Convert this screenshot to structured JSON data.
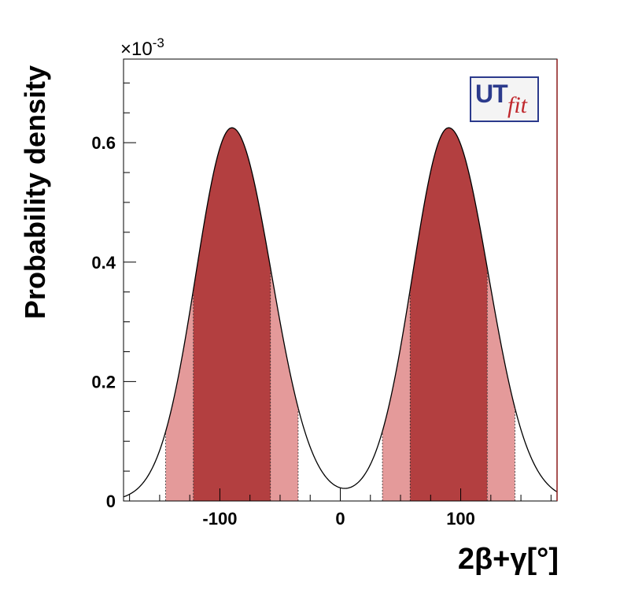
{
  "chart_data": {
    "type": "area",
    "xlabel": "2β+γ[°]",
    "ylabel": "Probability density",
    "y_multiplier": "×10",
    "y_multiplier_exp": "-3",
    "xlim": [
      -180,
      180
    ],
    "ylim": [
      0,
      0.00074
    ],
    "x_ticks": [
      {
        "value": -100,
        "label": "-100"
      },
      {
        "value": 0,
        "label": "0"
      },
      {
        "value": 100,
        "label": "100"
      }
    ],
    "y_ticks": [
      {
        "value": 0,
        "label": "0"
      },
      {
        "value": 0.0002,
        "label": "0.2"
      },
      {
        "value": 0.0004,
        "label": "0.4"
      },
      {
        "value": 0.0006,
        "label": "0.6"
      }
    ],
    "peaks": [
      {
        "center": -90,
        "height": 0.000625
      },
      {
        "center": 90,
        "height": 0.000625
      }
    ],
    "bands_68": [
      [
        -122,
        -58
      ],
      [
        58,
        122
      ]
    ],
    "bands_95": [
      [
        -145,
        -35
      ],
      [
        35,
        145
      ]
    ],
    "grid": false,
    "colors": {
      "region_68": "#b33f40",
      "region_95": "#e49a9a",
      "curve": "#000000",
      "frame_right": "#8b1a1a"
    },
    "logo": {
      "ut": "UT",
      "fit": "fit"
    }
  }
}
